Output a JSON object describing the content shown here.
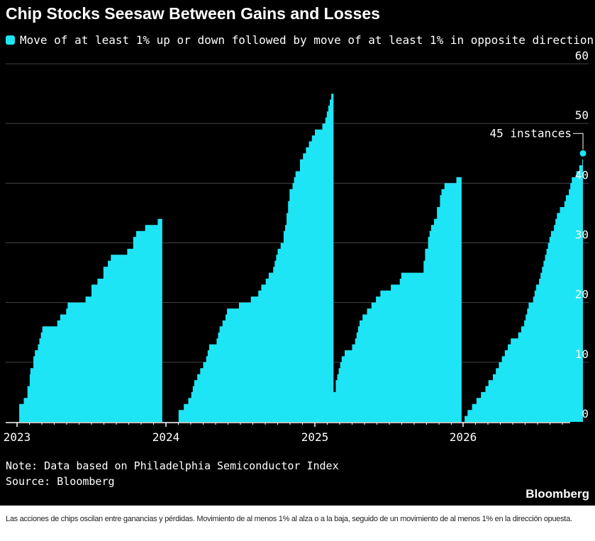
{
  "header": {
    "title": "Chip Stocks Seesaw Between Gains and Losses",
    "legend_label": "Move of at least 1% up or down followed by move of at least 1% in opposite direction"
  },
  "colors": {
    "background": "#000000",
    "series": "#1ee5f5",
    "grid": "#444444",
    "text": "#ffffff"
  },
  "chart_data": {
    "type": "area",
    "series": [
      {
        "name": "Move of at least 1% up or down followed by move of at least 1% in opposite direction",
        "segments": [
          {
            "year": 2023,
            "points": [
              [
                0.0,
                0
              ],
              [
                0.015,
                3
              ],
              [
                0.04,
                3
              ],
              [
                0.045,
                4
              ],
              [
                0.065,
                4
              ],
              [
                0.07,
                6
              ],
              [
                0.085,
                8
              ],
              [
                0.09,
                9
              ],
              [
                0.1,
                9
              ],
              [
                0.11,
                11
              ],
              [
                0.12,
                12
              ],
              [
                0.14,
                13
              ],
              [
                0.15,
                14
              ],
              [
                0.16,
                15
              ],
              [
                0.17,
                16
              ],
              [
                0.25,
                16
              ],
              [
                0.27,
                17
              ],
              [
                0.29,
                18
              ],
              [
                0.33,
                19
              ],
              [
                0.34,
                20
              ],
              [
                0.45,
                20
              ],
              [
                0.46,
                21
              ],
              [
                0.5,
                23
              ],
              [
                0.54,
                24
              ],
              [
                0.58,
                26
              ],
              [
                0.61,
                27
              ],
              [
                0.63,
                28
              ],
              [
                0.72,
                28
              ],
              [
                0.74,
                29
              ],
              [
                0.78,
                31
              ],
              [
                0.8,
                32
              ],
              [
                0.85,
                32
              ],
              [
                0.86,
                33
              ],
              [
                0.93,
                33
              ],
              [
                0.945,
                34
              ],
              [
                0.97,
                34
              ],
              [
                0.975,
                0
              ]
            ]
          },
          {
            "year": 2024,
            "points": [
              [
                0.0,
                0
              ],
              [
                0.08,
                0
              ],
              [
                0.085,
                2
              ],
              [
                0.12,
                3
              ],
              [
                0.15,
                4
              ],
              [
                0.17,
                5
              ],
              [
                0.18,
                6
              ],
              [
                0.19,
                7
              ],
              [
                0.21,
                8
              ],
              [
                0.23,
                9
              ],
              [
                0.25,
                10
              ],
              [
                0.27,
                11
              ],
              [
                0.28,
                12
              ],
              [
                0.29,
                13
              ],
              [
                0.33,
                13
              ],
              [
                0.34,
                14
              ],
              [
                0.35,
                15
              ],
              [
                0.36,
                16
              ],
              [
                0.38,
                17
              ],
              [
                0.4,
                18
              ],
              [
                0.41,
                19
              ],
              [
                0.48,
                19
              ],
              [
                0.49,
                20
              ],
              [
                0.56,
                20
              ],
              [
                0.57,
                21
              ],
              [
                0.62,
                22
              ],
              [
                0.64,
                23
              ],
              [
                0.67,
                24
              ],
              [
                0.69,
                25
              ],
              [
                0.72,
                26
              ],
              [
                0.73,
                27
              ],
              [
                0.74,
                28
              ],
              [
                0.75,
                29
              ],
              [
                0.77,
                30
              ],
              [
                0.79,
                32
              ],
              [
                0.8,
                33
              ],
              [
                0.81,
                35
              ],
              [
                0.82,
                37
              ],
              [
                0.83,
                39
              ],
              [
                0.85,
                40
              ],
              [
                0.86,
                41
              ],
              [
                0.87,
                42
              ],
              [
                0.9,
                44
              ],
              [
                0.92,
                45
              ],
              [
                0.94,
                46
              ],
              [
                0.96,
                47
              ],
              [
                0.98,
                48
              ],
              [
                1.0,
                49
              ],
              [
                1.04,
                49
              ],
              [
                1.05,
                50
              ],
              [
                1.07,
                51
              ],
              [
                1.08,
                52
              ],
              [
                1.09,
                53
              ],
              [
                1.1,
                54
              ],
              [
                1.11,
                55
              ],
              [
                1.12,
                55
              ],
              [
                1.125,
                0
              ]
            ]
          },
          {
            "year": 2025,
            "points": [
              [
                0.0,
                0
              ],
              [
                0.01,
                0
              ],
              [
                0.01,
                1
              ],
              [
                0.05,
                1
              ],
              [
                0.06,
                2
              ],
              [
                0.09,
                3
              ],
              [
                0.12,
                5
              ],
              [
                0.14,
                7
              ],
              [
                0.15,
                8
              ],
              [
                0.16,
                9
              ],
              [
                0.17,
                10
              ],
              [
                0.18,
                11
              ],
              [
                0.2,
                12
              ],
              [
                0.24,
                12
              ],
              [
                0.25,
                13
              ],
              [
                0.27,
                14
              ],
              [
                0.28,
                15
              ],
              [
                0.29,
                16
              ],
              [
                0.3,
                17
              ],
              [
                0.32,
                18
              ],
              [
                0.35,
                19
              ],
              [
                0.37,
                19
              ],
              [
                0.38,
                20
              ],
              [
                0.41,
                21
              ],
              [
                0.44,
                22
              ],
              [
                0.5,
                22
              ],
              [
                0.51,
                23
              ],
              [
                0.56,
                23
              ],
              [
                0.57,
                24
              ],
              [
                0.58,
                25
              ],
              [
                0.72,
                25
              ],
              [
                0.73,
                27
              ],
              [
                0.74,
                29
              ],
              [
                0.76,
                31
              ],
              [
                0.77,
                32
              ],
              [
                0.78,
                33
              ],
              [
                0.8,
                34
              ],
              [
                0.82,
                36
              ],
              [
                0.84,
                38
              ],
              [
                0.85,
                39
              ],
              [
                0.87,
                40
              ],
              [
                0.94,
                40
              ],
              [
                0.95,
                41
              ],
              [
                0.98,
                41
              ],
              [
                0.985,
                0
              ]
            ]
          },
          {
            "year": 2026,
            "points": [
              [
                0.0,
                0
              ],
              [
                0.01,
                1
              ],
              [
                0.03,
                2
              ],
              [
                0.06,
                3
              ],
              [
                0.09,
                4
              ],
              [
                0.12,
                5
              ],
              [
                0.15,
                6
              ],
              [
                0.17,
                7
              ],
              [
                0.2,
                8
              ],
              [
                0.22,
                9
              ],
              [
                0.24,
                10
              ],
              [
                0.26,
                11
              ],
              [
                0.28,
                12
              ],
              [
                0.3,
                13
              ],
              [
                0.32,
                14
              ],
              [
                0.36,
                14
              ],
              [
                0.37,
                15
              ],
              [
                0.39,
                16
              ],
              [
                0.41,
                17
              ],
              [
                0.42,
                18
              ],
              [
                0.43,
                19
              ],
              [
                0.44,
                20
              ],
              [
                0.47,
                21
              ],
              [
                0.48,
                22
              ],
              [
                0.49,
                23
              ],
              [
                0.51,
                24
              ],
              [
                0.52,
                25
              ],
              [
                0.53,
                26
              ],
              [
                0.54,
                27
              ],
              [
                0.55,
                28
              ],
              [
                0.56,
                29
              ],
              [
                0.57,
                30
              ],
              [
                0.58,
                31
              ],
              [
                0.59,
                32
              ],
              [
                0.61,
                33
              ],
              [
                0.62,
                34
              ],
              [
                0.63,
                35
              ],
              [
                0.65,
                36
              ],
              [
                0.68,
                37
              ],
              [
                0.69,
                38
              ],
              [
                0.71,
                39
              ],
              [
                0.72,
                40
              ],
              [
                0.73,
                41
              ],
              [
                0.76,
                42
              ],
              [
                0.78,
                43
              ],
              [
                0.8,
                44
              ],
              [
                0.805,
                45
              ]
            ]
          }
        ]
      }
    ],
    "x_ticks": [
      "2023",
      "2024",
      "2025",
      "2026"
    ],
    "y_ticks": [
      0,
      10,
      20,
      30,
      40,
      50,
      60
    ],
    "ylim": [
      0,
      60
    ],
    "y_axis_side": "right",
    "grid": true,
    "annotation": {
      "text": "45 instances",
      "value": 45
    }
  },
  "footer": {
    "note": "Note: Data based on Philadelphia Semiconductor Index",
    "source": "Source: Bloomberg",
    "brand": "Bloomberg"
  },
  "caption": "Las acciones de chips oscilan entre ganancias y pérdidas. Movimiento de al menos 1% al alza o a la baja, seguido de un movimiento de al menos 1% en la dirección opuesta."
}
